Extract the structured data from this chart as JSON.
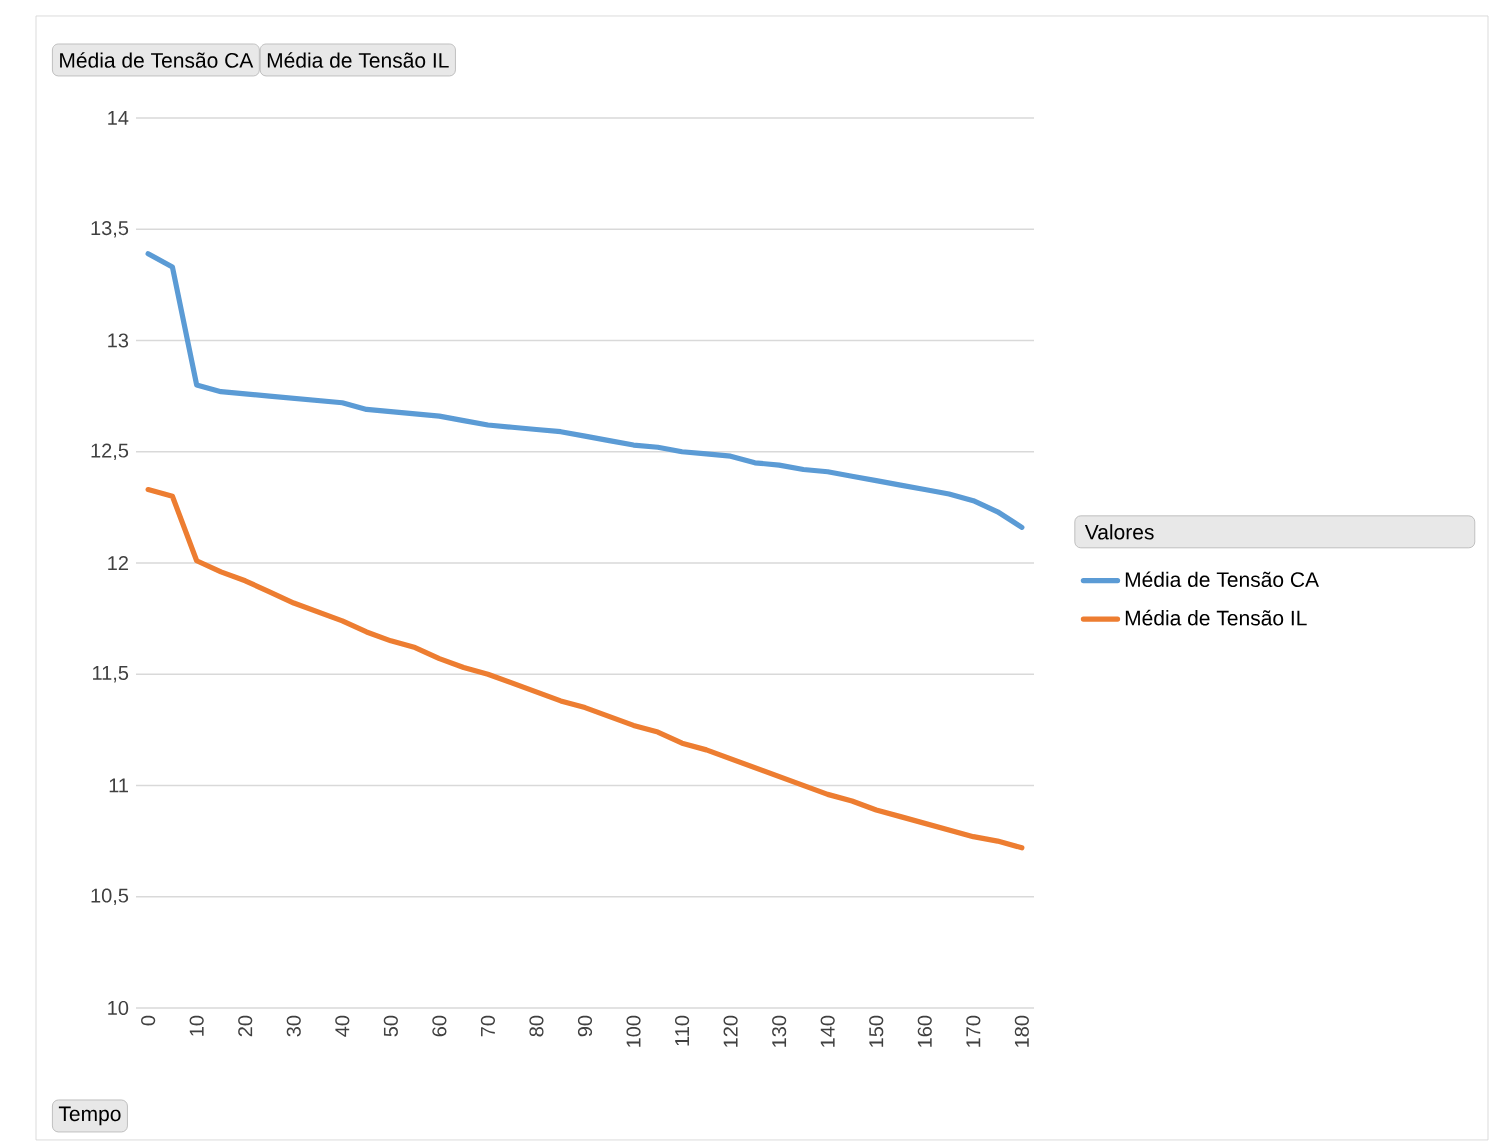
{
  "chart_data": {
    "type": "line",
    "categories": [
      "0",
      null,
      "10",
      null,
      "20",
      null,
      "30",
      null,
      "40",
      null,
      "50",
      null,
      "60",
      null,
      "70",
      null,
      "80",
      null,
      "90",
      null,
      "100",
      null,
      "110",
      null,
      "120",
      null,
      "130",
      null,
      "140",
      null,
      "150",
      null,
      "160",
      null,
      "170",
      null,
      "180"
    ],
    "series": [
      {
        "name": "Média de Tensão CA",
        "color": "#5b9bd5",
        "values": [
          13.39,
          13.33,
          12.8,
          12.77,
          12.76,
          12.75,
          12.74,
          12.73,
          12.72,
          12.69,
          12.68,
          12.67,
          12.66,
          12.64,
          12.62,
          12.61,
          12.6,
          12.59,
          12.57,
          12.55,
          12.53,
          12.52,
          12.5,
          12.49,
          12.48,
          12.45,
          12.44,
          12.42,
          12.41,
          12.39,
          12.37,
          12.35,
          12.33,
          12.31,
          12.28,
          12.23,
          12.16
        ]
      },
      {
        "name": "Média de Tensão IL",
        "color": "#ed7d31",
        "values": [
          12.33,
          12.3,
          12.01,
          11.96,
          11.92,
          11.87,
          11.82,
          11.78,
          11.74,
          11.69,
          11.65,
          11.62,
          11.57,
          11.53,
          11.5,
          11.46,
          11.42,
          11.38,
          11.35,
          11.31,
          11.27,
          11.24,
          11.19,
          11.16,
          11.12,
          11.08,
          11.04,
          11.0,
          10.96,
          10.93,
          10.89,
          10.86,
          10.83,
          10.8,
          10.77,
          10.75,
          10.72
        ]
      }
    ],
    "ylim": [
      10,
      14
    ],
    "yticks": [
      10,
      {
        "value": 10.5,
        "label": "10,5"
      },
      11,
      {
        "value": 11.5,
        "label": "11,5"
      },
      12,
      {
        "value": 12.5,
        "label": "12,5"
      },
      13,
      {
        "value": 13.5,
        "label": "13,5"
      },
      14
    ],
    "grid": "y",
    "legend": "right",
    "marker": "none",
    "legend_title": "Valores",
    "xlabel": "Tempo",
    "annotations": [
      "Média de Tensão CA",
      "Média de Tensão IL"
    ]
  }
}
